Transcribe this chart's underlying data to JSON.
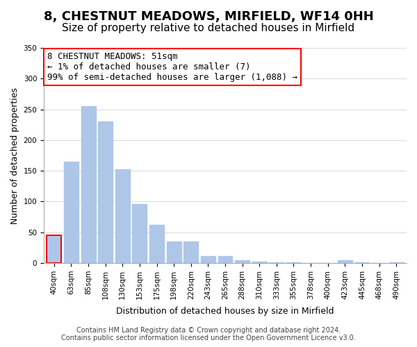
{
  "title": "8, CHESTNUT MEADOWS, MIRFIELD, WF14 0HH",
  "subtitle": "Size of property relative to detached houses in Mirfield",
  "xlabel": "Distribution of detached houses by size in Mirfield",
  "ylabel": "Number of detached properties",
  "bar_labels": [
    "40sqm",
    "63sqm",
    "85sqm",
    "108sqm",
    "130sqm",
    "153sqm",
    "175sqm",
    "198sqm",
    "220sqm",
    "243sqm",
    "265sqm",
    "288sqm",
    "310sqm",
    "333sqm",
    "355sqm",
    "378sqm",
    "400sqm",
    "423sqm",
    "445sqm",
    "468sqm",
    "490sqm"
  ],
  "bar_values": [
    45,
    165,
    255,
    230,
    153,
    96,
    62,
    35,
    35,
    11,
    11,
    5,
    2,
    1,
    1,
    0,
    0,
    4,
    1,
    0,
    1
  ],
  "bar_color": "#aec6e8",
  "highlight_bar_index": 0,
  "highlight_bar_color": "#aec6e8",
  "highlight_box_color": "#ff0000",
  "annotation_text": "8 CHESTNUT MEADOWS: 51sqm\n← 1% of detached houses are smaller (7)\n99% of semi-detached houses are larger (1,088) →",
  "ylim": [
    0,
    350
  ],
  "yticks": [
    0,
    50,
    100,
    150,
    200,
    250,
    300,
    350
  ],
  "footer_line1": "Contains HM Land Registry data © Crown copyright and database right 2024.",
  "footer_line2": "Contains public sector information licensed under the Open Government Licence v3.0.",
  "background_color": "#ffffff",
  "grid_color": "#dddddd",
  "title_fontsize": 13,
  "subtitle_fontsize": 11,
  "axis_label_fontsize": 9,
  "tick_fontsize": 7.5,
  "annotation_fontsize": 9,
  "footer_fontsize": 7
}
